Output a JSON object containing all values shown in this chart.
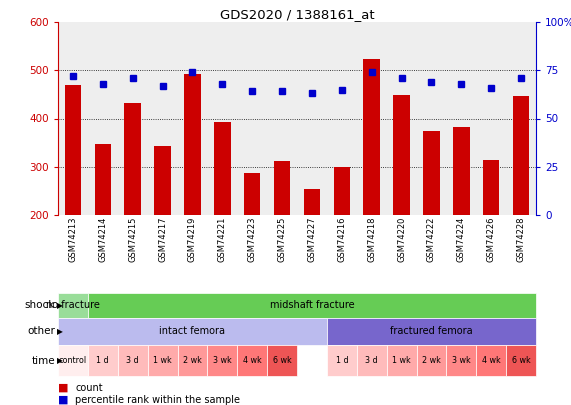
{
  "title": "GDS2020 / 1388161_at",
  "samples": [
    "GSM74213",
    "GSM74214",
    "GSM74215",
    "GSM74217",
    "GSM74219",
    "GSM74221",
    "GSM74223",
    "GSM74225",
    "GSM74227",
    "GSM74216",
    "GSM74218",
    "GSM74220",
    "GSM74222",
    "GSM74224",
    "GSM74226",
    "GSM74228"
  ],
  "counts": [
    470,
    348,
    432,
    343,
    493,
    392,
    288,
    312,
    254,
    300,
    524,
    448,
    375,
    382,
    313,
    447
  ],
  "percentiles": [
    72,
    68,
    71,
    67,
    74,
    68,
    64,
    64,
    63,
    65,
    74,
    71,
    69,
    68,
    66,
    71
  ],
  "ymin": 200,
  "ymax": 600,
  "yticks": [
    200,
    300,
    400,
    500,
    600
  ],
  "y2ticks": [
    0,
    25,
    50,
    75,
    100
  ],
  "bar_color": "#CC0000",
  "dot_color": "#0000CC",
  "shock_labels": [
    {
      "text": "no fracture",
      "start": 0,
      "end": 1,
      "color": "#99DD99"
    },
    {
      "text": "midshaft fracture",
      "start": 1,
      "end": 16,
      "color": "#66CC55"
    }
  ],
  "other_labels": [
    {
      "text": "intact femora",
      "start": 0,
      "end": 9,
      "color": "#BBBBEE"
    },
    {
      "text": "fractured femora",
      "start": 9,
      "end": 16,
      "color": "#7766CC"
    }
  ],
  "time_labels": [
    {
      "text": "control",
      "start": 0,
      "end": 1,
      "color": "#FFEEEE"
    },
    {
      "text": "1 d",
      "start": 1,
      "end": 2,
      "color": "#FFCCCC"
    },
    {
      "text": "3 d",
      "start": 2,
      "end": 3,
      "color": "#FFBBBB"
    },
    {
      "text": "1 wk",
      "start": 3,
      "end": 4,
      "color": "#FFAAAA"
    },
    {
      "text": "2 wk",
      "start": 4,
      "end": 5,
      "color": "#FF9999"
    },
    {
      "text": "3 wk",
      "start": 5,
      "end": 6,
      "color": "#FF8888"
    },
    {
      "text": "4 wk",
      "start": 6,
      "end": 7,
      "color": "#FF7777"
    },
    {
      "text": "6 wk",
      "start": 7,
      "end": 8,
      "color": "#EE5555"
    },
    {
      "text": "1 d",
      "start": 9,
      "end": 10,
      "color": "#FFCCCC"
    },
    {
      "text": "3 d",
      "start": 10,
      "end": 11,
      "color": "#FFBBBB"
    },
    {
      "text": "1 wk",
      "start": 11,
      "end": 12,
      "color": "#FFAAAA"
    },
    {
      "text": "2 wk",
      "start": 12,
      "end": 13,
      "color": "#FF9999"
    },
    {
      "text": "3 wk",
      "start": 13,
      "end": 14,
      "color": "#FF8888"
    },
    {
      "text": "4 wk",
      "start": 14,
      "end": 15,
      "color": "#FF7777"
    },
    {
      "text": "6 wk",
      "start": 15,
      "end": 16,
      "color": "#EE5555"
    }
  ],
  "shock_row_label": "shock",
  "other_row_label": "other",
  "time_row_label": "time",
  "count_legend": "count",
  "percentile_legend": "percentile rank within the sample",
  "bg_color": "#DDDDDD",
  "chart_bg": "#EEEEEE"
}
